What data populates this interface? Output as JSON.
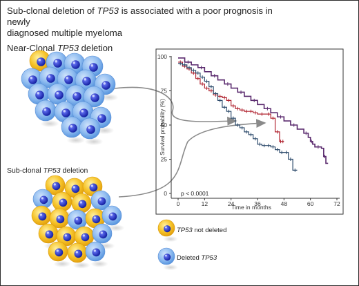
{
  "title_line1_pre": "Sub-clonal deletion of ",
  "title_line1_gene": "TP53",
  "title_line1_post": " is associated with a poor prognosis in newly",
  "title_line2": "diagnosed multiple myeloma",
  "near_label_pre": "Near-Clonal ",
  "near_label_gene": "TP53",
  "near_label_post": " deletion",
  "sub_label_pre": "Sub-clonal ",
  "sub_label_gene": "TP53",
  "sub_label_post": " deletion",
  "legend": {
    "not_deleted_gene": "TP53",
    "not_deleted_post": " not deleted",
    "deleted_pre": "Deleted ",
    "deleted_gene": "TP53"
  },
  "colors": {
    "purple": "#5a2a6e",
    "red": "#b0222f",
    "navy": "#2c4a6b",
    "blue_cell": "#7fb2ec",
    "yellow_cell": "#f4c020",
    "nucleus": "#1f2fbf"
  },
  "chart_data": {
    "type": "line",
    "title": "",
    "xlabel": "Time in months",
    "ylabel": "Survival probability (%)",
    "xlim": [
      0,
      72
    ],
    "ylim": [
      0,
      100
    ],
    "xticks": [
      "0",
      "12",
      "24",
      "36",
      "48",
      "60",
      "72"
    ],
    "yticks": [
      "0",
      "25",
      "50",
      "75",
      "100"
    ],
    "annotation": "p < 0.0001",
    "grid": false,
    "series": [
      {
        "color": "#5a2a6e",
        "x": [
          0,
          3,
          6,
          9,
          12,
          15,
          18,
          21,
          24,
          27,
          30,
          33,
          36,
          39,
          42,
          45,
          48,
          51,
          54,
          57,
          59,
          60,
          61,
          62,
          65,
          66,
          67,
          68
        ],
        "y": [
          99,
          96,
          94,
          92,
          89,
          86,
          83,
          80,
          77,
          74,
          71,
          68,
          65,
          62,
          59,
          56,
          53,
          50,
          47,
          44,
          41,
          38,
          36,
          34,
          33,
          27,
          22,
          22
        ]
      },
      {
        "color": "#b0222f",
        "x": [
          0,
          2,
          4,
          6,
          8,
          10,
          12,
          14,
          16,
          18,
          20,
          22,
          24,
          26,
          28,
          30,
          32,
          34,
          36,
          40,
          42,
          44,
          46,
          47,
          48
        ],
        "y": [
          96,
          93,
          91,
          88,
          84,
          80,
          77,
          75,
          72,
          71,
          70,
          68,
          64,
          62,
          61,
          60,
          60,
          59,
          58,
          58,
          55,
          45,
          38,
          38,
          38
        ]
      },
      {
        "color": "#2c4a6b",
        "x": [
          0,
          2,
          4,
          6,
          8,
          10,
          12,
          14,
          16,
          18,
          20,
          22,
          24,
          26,
          28,
          30,
          32,
          34,
          36,
          38,
          40,
          42,
          44,
          46,
          48,
          50,
          52,
          54
        ],
        "y": [
          95,
          94,
          92,
          90,
          88,
          85,
          82,
          78,
          73,
          68,
          63,
          60,
          55,
          50,
          48,
          45,
          43,
          40,
          36,
          35,
          35,
          34,
          32,
          30,
          30,
          25,
          17,
          17
        ]
      }
    ]
  }
}
